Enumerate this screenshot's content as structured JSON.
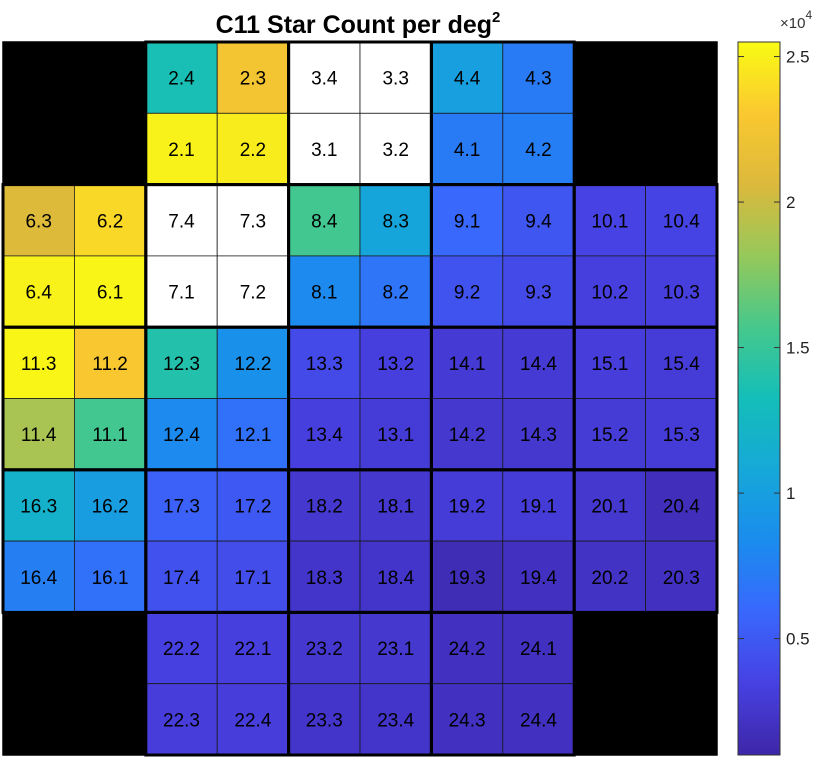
{
  "chart_data": {
    "type": "heatmap",
    "title": "C11 Star Count per deg",
    "title_superscript": "2",
    "colormap": "parula",
    "colorbar": {
      "range": [
        0.1,
        2.55
      ],
      "ticks": [
        0.5,
        1,
        1.5,
        2,
        2.5
      ],
      "tick_labels": [
        "0.5",
        "1",
        "1.5",
        "2",
        "2.5"
      ],
      "multiplier_label": "×10",
      "multiplier_exponent": "4"
    },
    "missing_color": "#000000",
    "unobserved_color": "#ffffff",
    "grid": {
      "columns": 10,
      "rows": 10,
      "modules": [
        {
          "module": 2,
          "col": 1,
          "row": 0
        },
        {
          "module": 3,
          "col": 2,
          "row": 0
        },
        {
          "module": 4,
          "col": 3,
          "row": 0
        },
        {
          "module": 6,
          "col": 0,
          "row": 1
        },
        {
          "module": 7,
          "col": 1,
          "row": 1
        },
        {
          "module": 8,
          "col": 2,
          "row": 1
        },
        {
          "module": 9,
          "col": 3,
          "row": 1
        },
        {
          "module": 10,
          "col": 4,
          "row": 1
        },
        {
          "module": 11,
          "col": 0,
          "row": 2
        },
        {
          "module": 12,
          "col": 1,
          "row": 2
        },
        {
          "module": 13,
          "col": 2,
          "row": 2
        },
        {
          "module": 14,
          "col": 3,
          "row": 2
        },
        {
          "module": 15,
          "col": 4,
          "row": 2
        },
        {
          "module": 16,
          "col": 0,
          "row": 3
        },
        {
          "module": 17,
          "col": 1,
          "row": 3
        },
        {
          "module": 18,
          "col": 2,
          "row": 3
        },
        {
          "module": 19,
          "col": 3,
          "row": 3
        },
        {
          "module": 20,
          "col": 4,
          "row": 3
        },
        {
          "module": 22,
          "col": 1,
          "row": 4
        },
        {
          "module": 23,
          "col": 2,
          "row": 4
        },
        {
          "module": 24,
          "col": 3,
          "row": 4
        }
      ]
    },
    "cells": [
      {
        "label": "2.4",
        "col": 2,
        "row": 0,
        "value": 1.35
      },
      {
        "label": "2.3",
        "col": 3,
        "row": 0,
        "value": 2.25
      },
      {
        "label": "3.4",
        "col": 4,
        "row": 0,
        "value": null
      },
      {
        "label": "3.3",
        "col": 5,
        "row": 0,
        "value": null
      },
      {
        "label": "4.4",
        "col": 6,
        "row": 0,
        "value": 1.0
      },
      {
        "label": "4.3",
        "col": 7,
        "row": 0,
        "value": 0.72
      },
      {
        "label": "2.1",
        "col": 2,
        "row": 1,
        "value": 2.5
      },
      {
        "label": "2.2",
        "col": 3,
        "row": 1,
        "value": 2.48
      },
      {
        "label": "3.1",
        "col": 4,
        "row": 1,
        "value": null
      },
      {
        "label": "3.2",
        "col": 5,
        "row": 1,
        "value": null
      },
      {
        "label": "4.1",
        "col": 6,
        "row": 1,
        "value": 0.72
      },
      {
        "label": "4.2",
        "col": 7,
        "row": 1,
        "value": 0.74
      },
      {
        "label": "6.3",
        "col": 0,
        "row": 2,
        "value": 2.08
      },
      {
        "label": "6.2",
        "col": 1,
        "row": 2,
        "value": 2.38
      },
      {
        "label": "7.4",
        "col": 2,
        "row": 2,
        "value": null
      },
      {
        "label": "7.3",
        "col": 3,
        "row": 2,
        "value": null
      },
      {
        "label": "8.4",
        "col": 4,
        "row": 2,
        "value": 1.55
      },
      {
        "label": "8.3",
        "col": 5,
        "row": 2,
        "value": 1.05
      },
      {
        "label": "9.1",
        "col": 6,
        "row": 2,
        "value": 0.6
      },
      {
        "label": "9.4",
        "col": 7,
        "row": 2,
        "value": 0.48
      },
      {
        "label": "10.1",
        "col": 8,
        "row": 2,
        "value": 0.35
      },
      {
        "label": "10.4",
        "col": 9,
        "row": 2,
        "value": 0.36
      },
      {
        "label": "6.4",
        "col": 0,
        "row": 3,
        "value": 2.5
      },
      {
        "label": "6.1",
        "col": 1,
        "row": 3,
        "value": 2.52
      },
      {
        "label": "7.1",
        "col": 2,
        "row": 3,
        "value": null
      },
      {
        "label": "7.2",
        "col": 3,
        "row": 3,
        "value": null
      },
      {
        "label": "8.1",
        "col": 4,
        "row": 3,
        "value": 0.82
      },
      {
        "label": "8.2",
        "col": 5,
        "row": 3,
        "value": 0.68
      },
      {
        "label": "9.2",
        "col": 6,
        "row": 3,
        "value": 0.46
      },
      {
        "label": "9.3",
        "col": 7,
        "row": 3,
        "value": 0.4
      },
      {
        "label": "10.2",
        "col": 8,
        "row": 3,
        "value": 0.33
      },
      {
        "label": "10.3",
        "col": 9,
        "row": 3,
        "value": 0.33
      },
      {
        "label": "11.3",
        "col": 0,
        "row": 4,
        "value": 2.52
      },
      {
        "label": "11.2",
        "col": 1,
        "row": 4,
        "value": 2.3
      },
      {
        "label": "12.3",
        "col": 2,
        "row": 4,
        "value": 1.4
      },
      {
        "label": "12.2",
        "col": 3,
        "row": 4,
        "value": 0.88
      },
      {
        "label": "13.3",
        "col": 4,
        "row": 4,
        "value": 0.4
      },
      {
        "label": "13.2",
        "col": 5,
        "row": 4,
        "value": 0.33
      },
      {
        "label": "14.1",
        "col": 6,
        "row": 4,
        "value": 0.28
      },
      {
        "label": "14.4",
        "col": 7,
        "row": 4,
        "value": 0.28
      },
      {
        "label": "15.1",
        "col": 8,
        "row": 4,
        "value": 0.31
      },
      {
        "label": "15.4",
        "col": 9,
        "row": 4,
        "value": 0.3
      },
      {
        "label": "11.4",
        "col": 0,
        "row": 5,
        "value": 1.88
      },
      {
        "label": "11.1",
        "col": 1,
        "row": 5,
        "value": 1.55
      },
      {
        "label": "12.4",
        "col": 2,
        "row": 5,
        "value": 0.82
      },
      {
        "label": "12.1",
        "col": 3,
        "row": 5,
        "value": 0.65
      },
      {
        "label": "13.4",
        "col": 4,
        "row": 5,
        "value": 0.33
      },
      {
        "label": "13.1",
        "col": 5,
        "row": 5,
        "value": 0.3
      },
      {
        "label": "14.2",
        "col": 6,
        "row": 5,
        "value": 0.26
      },
      {
        "label": "14.3",
        "col": 7,
        "row": 5,
        "value": 0.26
      },
      {
        "label": "15.2",
        "col": 8,
        "row": 5,
        "value": 0.29
      },
      {
        "label": "15.3",
        "col": 9,
        "row": 5,
        "value": 0.3
      },
      {
        "label": "16.3",
        "col": 0,
        "row": 6,
        "value": 1.18
      },
      {
        "label": "16.2",
        "col": 1,
        "row": 6,
        "value": 0.98
      },
      {
        "label": "17.3",
        "col": 2,
        "row": 6,
        "value": 0.55
      },
      {
        "label": "17.2",
        "col": 3,
        "row": 6,
        "value": 0.5
      },
      {
        "label": "18.2",
        "col": 4,
        "row": 6,
        "value": 0.26
      },
      {
        "label": "18.1",
        "col": 5,
        "row": 6,
        "value": 0.26
      },
      {
        "label": "19.2",
        "col": 6,
        "row": 6,
        "value": 0.3
      },
      {
        "label": "19.1",
        "col": 7,
        "row": 6,
        "value": 0.3
      },
      {
        "label": "20.1",
        "col": 8,
        "row": 6,
        "value": 0.26
      },
      {
        "label": "20.4",
        "col": 9,
        "row": 6,
        "value": 0.18
      },
      {
        "label": "16.4",
        "col": 0,
        "row": 7,
        "value": 0.75
      },
      {
        "label": "16.1",
        "col": 1,
        "row": 7,
        "value": 0.65
      },
      {
        "label": "17.4",
        "col": 2,
        "row": 7,
        "value": 0.45
      },
      {
        "label": "17.1",
        "col": 3,
        "row": 7,
        "value": 0.42
      },
      {
        "label": "18.3",
        "col": 4,
        "row": 7,
        "value": 0.24
      },
      {
        "label": "18.4",
        "col": 5,
        "row": 7,
        "value": 0.24
      },
      {
        "label": "19.3",
        "col": 6,
        "row": 7,
        "value": 0.16
      },
      {
        "label": "19.4",
        "col": 7,
        "row": 7,
        "value": 0.2
      },
      {
        "label": "20.2",
        "col": 8,
        "row": 7,
        "value": 0.22
      },
      {
        "label": "20.3",
        "col": 9,
        "row": 7,
        "value": 0.2
      },
      {
        "label": "22.2",
        "col": 2,
        "row": 8,
        "value": 0.34
      },
      {
        "label": "22.1",
        "col": 3,
        "row": 8,
        "value": 0.33
      },
      {
        "label": "23.2",
        "col": 4,
        "row": 8,
        "value": 0.26
      },
      {
        "label": "23.1",
        "col": 5,
        "row": 8,
        "value": 0.26
      },
      {
        "label": "24.2",
        "col": 6,
        "row": 8,
        "value": 0.2
      },
      {
        "label": "24.1",
        "col": 7,
        "row": 8,
        "value": 0.2
      },
      {
        "label": "22.3",
        "col": 2,
        "row": 9,
        "value": 0.31
      },
      {
        "label": "22.4",
        "col": 3,
        "row": 9,
        "value": 0.31
      },
      {
        "label": "23.3",
        "col": 4,
        "row": 9,
        "value": 0.24
      },
      {
        "label": "23.4",
        "col": 5,
        "row": 9,
        "value": 0.24
      },
      {
        "label": "24.3",
        "col": 6,
        "row": 9,
        "value": 0.2
      },
      {
        "label": "24.4",
        "col": 7,
        "row": 9,
        "value": 0.2
      }
    ]
  }
}
